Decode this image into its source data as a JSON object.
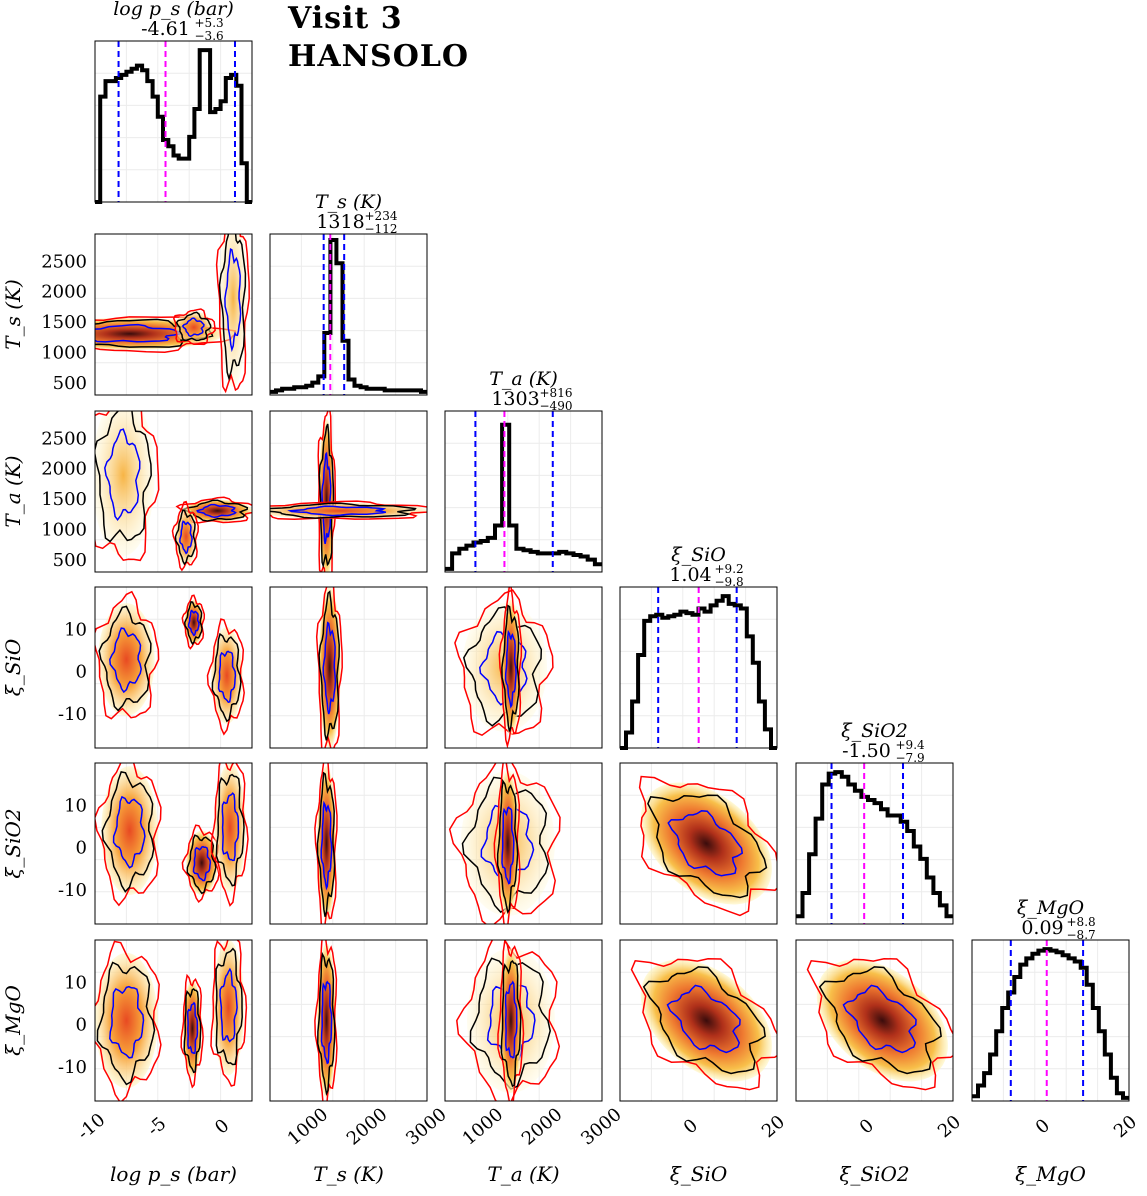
{
  "figure": {
    "title_line1": "Visit 3",
    "title_line2": "HANSOLO"
  },
  "colors": {
    "median_line": "#ff00ff",
    "quantile_line": "#0000ff",
    "contour_outer": "#ff0000",
    "contour_mid": "#000000",
    "contour_inner": "#0000ff",
    "histogram": "#000000"
  },
  "chart_data": {
    "type": "corner",
    "parameters": [
      {
        "id": "logps",
        "label": "log p_s (bar)",
        "median": "-4.61",
        "plus": "+5.3",
        "minus": "−3.6",
        "range": [
          -10,
          2
        ],
        "ticks": [
          "-10",
          "-5",
          "0"
        ],
        "tick_values": [
          -10,
          -5,
          0
        ],
        "q16": -8.2,
        "q50": -4.61,
        "q84": 0.7
      },
      {
        "id": "Ts",
        "label": "T_s (K)",
        "median": "1318",
        "plus": "+234",
        "minus": "−112",
        "range": [
          300,
          2950
        ],
        "ticks": [
          "1000",
          "2000",
          "3000"
        ],
        "tick_values": [
          1000,
          2000,
          3000
        ],
        "y_ticks": [
          "2500",
          "2000",
          "1500",
          "1000",
          "500"
        ],
        "y_tick_values": [
          2500,
          2000,
          1500,
          1000,
          500
        ],
        "q16": 1206,
        "q50": 1318,
        "q84": 1552
      },
      {
        "id": "Ta",
        "label": "T_a (K)",
        "median": "1303",
        "plus": "+816",
        "minus": "−490",
        "range": [
          300,
          2950
        ],
        "ticks": [
          "1000",
          "2000",
          "3000"
        ],
        "tick_values": [
          1000,
          2000,
          3000
        ],
        "y_ticks": [
          "2500",
          "2000",
          "1500",
          "1000",
          "500"
        ],
        "y_tick_values": [
          2500,
          2000,
          1500,
          1000,
          500
        ],
        "q16": 813,
        "q50": 1303,
        "q84": 2119
      },
      {
        "id": "xiSiO",
        "label": "ξ_SiO",
        "median": "1.04",
        "plus": "+9.2",
        "minus": "−9.8",
        "range": [
          -18,
          20
        ],
        "ticks": [
          "0",
          "20"
        ],
        "tick_values": [
          0,
          20
        ],
        "y_ticks": [
          "10",
          "0",
          "-10"
        ],
        "y_tick_values": [
          10,
          0,
          -10
        ],
        "q16": -8.76,
        "q50": 1.04,
        "q84": 10.24
      },
      {
        "id": "xiSiO2",
        "label": "ξ_SiO2",
        "median": "-1.50",
        "plus": "+9.4",
        "minus": "−7.9",
        "range": [
          -18,
          20
        ],
        "ticks": [
          "0",
          "20"
        ],
        "tick_values": [
          0,
          20
        ],
        "y_ticks": [
          "10",
          "0",
          "-10"
        ],
        "y_tick_values": [
          10,
          0,
          -10
        ],
        "q16": -9.4,
        "q50": -1.5,
        "q84": 7.9
      },
      {
        "id": "xiMgO",
        "label": "ξ_MgO",
        "median": "0.09",
        "plus": "+8.8",
        "minus": "−8.7",
        "range": [
          -18,
          20
        ],
        "ticks": [
          "0",
          "20"
        ],
        "tick_values": [
          0,
          20
        ],
        "y_ticks": [
          "10",
          "0",
          "-10"
        ],
        "y_tick_values": [
          10,
          0,
          -10
        ],
        "q16": -8.61,
        "q50": 0.09,
        "q84": 8.89
      }
    ],
    "histograms": {
      "logps": [
        0,
        0.68,
        0.78,
        0.78,
        0.8,
        0.82,
        0.84,
        0.86,
        0.88,
        0.85,
        0.78,
        0.68,
        0.55,
        0.4,
        0.36,
        0.3,
        0.28,
        0.28,
        0.42,
        0.6,
        0.98,
        0.98,
        0.58,
        0.6,
        0.65,
        0.8,
        0.82,
        0.75,
        0.25,
        0
      ],
      "Ts": [
        0.02,
        0.03,
        0.04,
        0.04,
        0.05,
        0.05,
        0.06,
        0.08,
        0.12,
        0.4,
        1.0,
        0.85,
        0.35,
        0.1,
        0.06,
        0.05,
        0.04,
        0.04,
        0.04,
        0.03,
        0.03,
        0.03,
        0.03,
        0.03,
        0.03,
        0.02
      ],
      "Ta": [
        0.02,
        0.12,
        0.15,
        0.17,
        0.19,
        0.2,
        0.22,
        0.3,
        0.95,
        0.3,
        0.15,
        0.14,
        0.13,
        0.12,
        0.12,
        0.12,
        0.13,
        0.12,
        0.11,
        0.1,
        0.08,
        0.05
      ],
      "xiSiO": [
        0,
        0.1,
        0.3,
        0.6,
        0.82,
        0.85,
        0.86,
        0.84,
        0.85,
        0.86,
        0.88,
        0.87,
        0.86,
        0.9,
        0.88,
        0.92,
        0.95,
        0.98,
        0.93,
        0.92,
        0.9,
        0.72,
        0.55,
        0.3,
        0.12,
        0
      ],
      "xiSiO2": [
        0.05,
        0.2,
        0.45,
        0.68,
        0.9,
        0.97,
        0.98,
        0.95,
        0.9,
        0.86,
        0.82,
        0.8,
        0.78,
        0.74,
        0.7,
        0.7,
        0.66,
        0.6,
        0.5,
        0.42,
        0.3,
        0.2,
        0.12,
        0.05
      ],
      "xiMgO": [
        0.03,
        0.1,
        0.18,
        0.3,
        0.45,
        0.6,
        0.7,
        0.8,
        0.88,
        0.92,
        0.95,
        0.97,
        0.98,
        0.97,
        0.96,
        0.94,
        0.92,
        0.9,
        0.86,
        0.75,
        0.6,
        0.45,
        0.3,
        0.15,
        0.05,
        0.02
      ]
    }
  }
}
